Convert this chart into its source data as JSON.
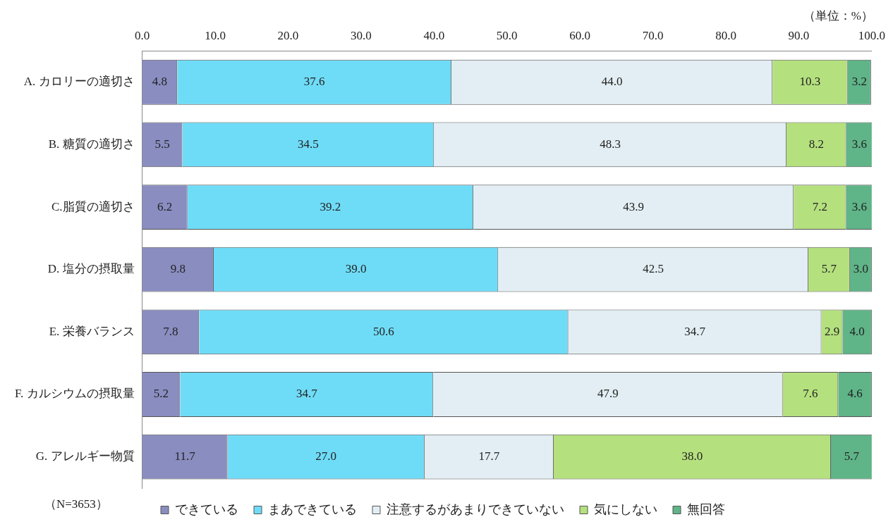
{
  "chart_data": {
    "type": "bar",
    "orientation": "horizontal",
    "stacked": true,
    "categories": [
      "A. カロリーの適切さ",
      "B. 糖質の適切さ",
      "C.脂質の適切さ",
      "D. 塩分の摂取量",
      "E. 栄養バランス",
      "F. カルシウムの摂取量",
      "G. アレルギー物質"
    ],
    "series": [
      {
        "name": "できている",
        "color": "#8a8dc0",
        "values": [
          4.8,
          5.5,
          6.2,
          9.8,
          7.8,
          5.2,
          11.7
        ],
        "value_labels": [
          "4.8",
          "5.5",
          "6.2",
          "9.8",
          "7.8",
          "5.2",
          "11.7"
        ]
      },
      {
        "name": "まあできている",
        "color": "#6fdcf7",
        "values": [
          37.6,
          34.5,
          39.2,
          39.0,
          50.6,
          34.7,
          27.0
        ],
        "value_labels": [
          "37.6",
          "34.5",
          "39.2",
          "39.0",
          "50.6",
          "34.7",
          "27.0"
        ]
      },
      {
        "name": "注意するがあまりできていない",
        "color": "#e2eef3",
        "values": [
          44.0,
          48.3,
          43.9,
          42.5,
          34.7,
          47.9,
          17.7
        ],
        "value_labels": [
          "44.0",
          "48.3",
          "43.9",
          "42.5",
          "34.7",
          "47.9",
          "17.7"
        ]
      },
      {
        "name": "気にしない",
        "color": "#b5e07e",
        "values": [
          10.3,
          8.2,
          7.2,
          5.7,
          2.9,
          7.6,
          38.0
        ],
        "value_labels": [
          "10.3",
          "8.2",
          "7.2",
          "5.7",
          "2.9",
          "7.6",
          "38.0"
        ]
      },
      {
        "name": "無回答",
        "color": "#5fb488",
        "values": [
          3.2,
          3.6,
          3.6,
          3.0,
          4.0,
          4.6,
          5.7
        ],
        "value_labels": [
          "3.2",
          "3.6",
          "3.6",
          "3.0",
          "4.0",
          "4.6",
          "5.7"
        ]
      }
    ],
    "xlim": [
      0,
      100
    ],
    "xticks": [
      {
        "value": 0,
        "label": "0.0"
      },
      {
        "value": 10,
        "label": "10.0"
      },
      {
        "value": 20,
        "label": "20.0"
      },
      {
        "value": 30,
        "label": "30.0"
      },
      {
        "value": 40,
        "label": "40.0"
      },
      {
        "value": 50,
        "label": "50.0"
      },
      {
        "value": 60,
        "label": "60.0"
      },
      {
        "value": 70,
        "label": "70.0"
      },
      {
        "value": 80,
        "label": "80.0"
      },
      {
        "value": 90,
        "label": "90.0"
      },
      {
        "value": 100,
        "label": "100.0"
      }
    ],
    "grid": false,
    "legend": "bottom",
    "annotations": [
      "（単位：%）",
      "（N=3653）"
    ]
  }
}
